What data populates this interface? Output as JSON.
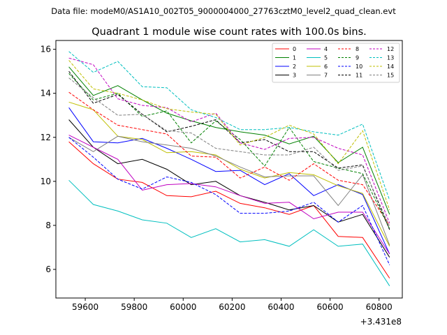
{
  "header": {
    "datafile": "Data file: modeM0/AS1A10_002T05_9000004000_27763cztM0_level2_quad_clean.evt"
  },
  "chart_data": {
    "type": "line",
    "title": "Quadrant 1 module wise count rates with 100.0s bins.",
    "xlabel": "",
    "ylabel": "",
    "x_offset_label": "+3.431e8",
    "x": [
      59533,
      59633,
      59733,
      59833,
      59933,
      60033,
      60133,
      60233,
      60333,
      60433,
      60533,
      60633,
      60733,
      60843
    ],
    "xlim": [
      59480,
      60895
    ],
    "ylim": [
      4.7,
      16.4
    ],
    "xticks": [
      59600,
      59800,
      60000,
      60200,
      60400,
      60600,
      60800
    ],
    "yticks": [
      6,
      8,
      10,
      12,
      14,
      16
    ],
    "legend_position": "upper right",
    "series": [
      {
        "name": "0",
        "color": "#ff0000",
        "dash": "solid",
        "values": [
          11.8,
          10.8,
          10.1,
          9.95,
          9.35,
          9.3,
          9.55,
          9.0,
          8.8,
          8.5,
          8.9,
          7.5,
          7.45,
          5.6
        ]
      },
      {
        "name": "1",
        "color": "#008000",
        "dash": "solid",
        "values": [
          15.2,
          13.9,
          14.35,
          13.7,
          13.1,
          12.75,
          12.45,
          12.25,
          12.1,
          11.7,
          12.05,
          10.85,
          11.55,
          8.5
        ]
      },
      {
        "name": "2",
        "color": "#0000ff",
        "dash": "solid",
        "values": [
          13.35,
          11.8,
          11.75,
          11.95,
          11.5,
          11.0,
          10.45,
          10.5,
          9.85,
          10.35,
          9.35,
          9.85,
          9.4,
          6.7
        ]
      },
      {
        "name": "3",
        "color": "#000000",
        "dash": "solid",
        "values": [
          12.8,
          11.55,
          10.8,
          11.0,
          10.55,
          9.85,
          10.0,
          9.35,
          9.05,
          8.7,
          8.9,
          8.15,
          8.5,
          6.55
        ]
      },
      {
        "name": "4",
        "color": "#c000c0",
        "dash": "solid",
        "values": [
          12.1,
          11.55,
          11.0,
          9.6,
          9.85,
          9.9,
          9.75,
          9.35,
          9.0,
          9.05,
          8.3,
          8.6,
          8.6,
          6.7
        ]
      },
      {
        "name": "5",
        "color": "#00bfbf",
        "dash": "solid",
        "values": [
          10.05,
          8.95,
          8.65,
          8.25,
          8.1,
          7.45,
          7.85,
          7.25,
          7.35,
          7.05,
          7.8,
          7.05,
          7.15,
          5.25
        ]
      },
      {
        "name": "6",
        "color": "#bfbf00",
        "dash": "solid",
        "values": [
          13.6,
          13.25,
          12.05,
          11.9,
          11.3,
          11.35,
          11.2,
          10.55,
          10.15,
          10.4,
          10.3,
          9.8,
          9.45,
          7.05
        ]
      },
      {
        "name": "7",
        "color": "#808080",
        "dash": "solid",
        "values": [
          12.0,
          11.35,
          12.05,
          11.8,
          11.65,
          11.5,
          11.15,
          10.65,
          10.2,
          10.25,
          10.25,
          8.9,
          10.3,
          7.1
        ]
      },
      {
        "name": "8",
        "color": "#ff0000",
        "dash": "dashed",
        "values": [
          14.05,
          13.25,
          12.55,
          12.35,
          12.15,
          11.15,
          11.1,
          10.15,
          10.65,
          10.05,
          10.8,
          10.05,
          9.85,
          8.0
        ]
      },
      {
        "name": "9",
        "color": "#008000",
        "dash": "dashed",
        "values": [
          14.9,
          13.7,
          14.0,
          12.95,
          13.2,
          11.75,
          12.75,
          11.9,
          10.7,
          12.45,
          10.9,
          10.6,
          10.35,
          7.85
        ]
      },
      {
        "name": "10",
        "color": "#0000ff",
        "dash": "dashed",
        "values": [
          12.0,
          11.1,
          10.1,
          9.65,
          10.2,
          9.95,
          9.4,
          8.55,
          8.55,
          8.65,
          9.05,
          8.15,
          8.9,
          6.2
        ]
      },
      {
        "name": "11",
        "color": "#000000",
        "dash": "dashed",
        "values": [
          15.0,
          13.55,
          13.95,
          13.05,
          12.25,
          12.5,
          12.8,
          11.75,
          11.9,
          11.35,
          11.35,
          10.6,
          10.75,
          7.8
        ]
      },
      {
        "name": "12",
        "color": "#c000c0",
        "dash": "dashed",
        "values": [
          15.6,
          15.3,
          13.75,
          13.45,
          13.35,
          12.7,
          13.1,
          11.75,
          11.45,
          11.95,
          12.0,
          11.5,
          11.2,
          8.1
        ]
      },
      {
        "name": "13",
        "color": "#00bfbf",
        "dash": "dashed",
        "values": [
          15.9,
          14.95,
          15.45,
          14.3,
          14.25,
          13.25,
          12.9,
          12.35,
          12.35,
          12.45,
          12.25,
          12.1,
          12.6,
          9.15
        ]
      },
      {
        "name": "14",
        "color": "#bfbf00",
        "dash": "dashed",
        "values": [
          15.5,
          14.2,
          14.0,
          13.7,
          13.3,
          13.15,
          13.05,
          11.65,
          12.0,
          12.55,
          12.15,
          10.8,
          12.3,
          8.7
        ]
      },
      {
        "name": "15",
        "color": "#808080",
        "dash": "dashed",
        "values": [
          14.7,
          13.8,
          13.0,
          13.05,
          12.3,
          12.2,
          11.5,
          11.35,
          11.2,
          11.2,
          11.55,
          10.5,
          10.7,
          7.95
        ]
      }
    ]
  }
}
